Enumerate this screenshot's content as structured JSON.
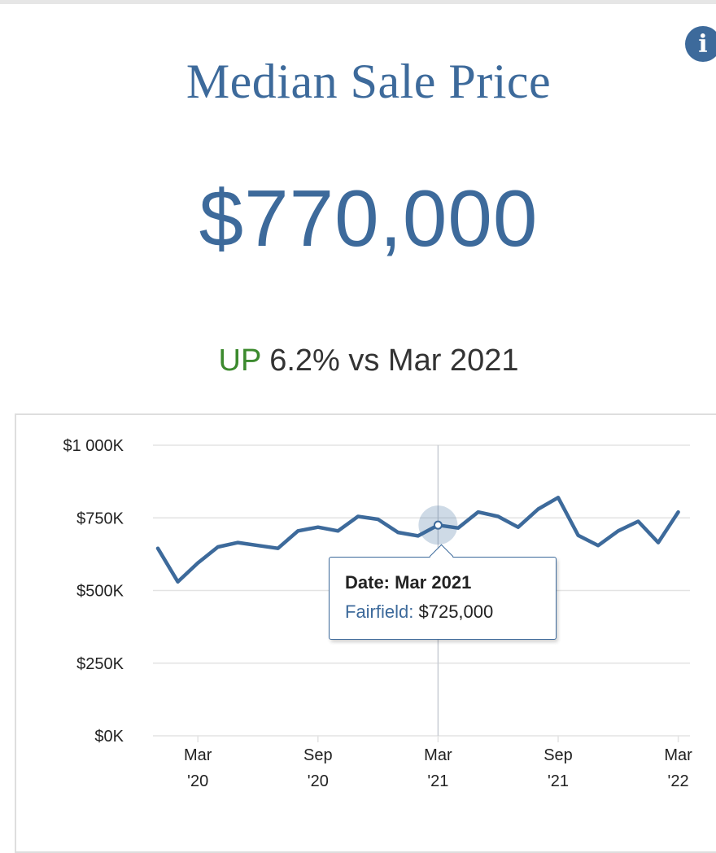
{
  "header": {
    "title": "Median Sale Price",
    "value": "$770,000",
    "change_direction": "UP",
    "change_text": "6.2% vs Mar 2021",
    "info_icon": "info-circle-icon"
  },
  "colors": {
    "accent": "#3d6a9b",
    "up": "#3c8a2e",
    "grid": "#e3e3e3",
    "crosshair": "#c8ccd4"
  },
  "chart_data": {
    "type": "line",
    "x": [
      "Jan 2020",
      "Feb 2020",
      "Mar 2020",
      "Apr 2020",
      "May 2020",
      "Jun 2020",
      "Jul 2020",
      "Aug 2020",
      "Sep 2020",
      "Oct 2020",
      "Nov 2020",
      "Dec 2020",
      "Jan 2021",
      "Feb 2021",
      "Mar 2021",
      "Apr 2021",
      "May 2021",
      "Jun 2021",
      "Jul 2021",
      "Aug 2021",
      "Sep 2021",
      "Oct 2021",
      "Nov 2021",
      "Dec 2021",
      "Jan 2022",
      "Feb 2022",
      "Mar 2022"
    ],
    "series": [
      {
        "name": "Fairfield",
        "values": [
          645000,
          530000,
          595000,
          650000,
          665000,
          655000,
          645000,
          705000,
          718000,
          705000,
          755000,
          745000,
          700000,
          688000,
          725000,
          715000,
          770000,
          755000,
          718000,
          780000,
          820000,
          690000,
          655000,
          705000,
          738000,
          665000,
          770000
        ]
      }
    ],
    "y_ticks": [
      "$1 000K",
      "$750K",
      "$500K",
      "$250K",
      "$0K"
    ],
    "y_tick_values": [
      1000000,
      750000,
      500000,
      250000,
      0
    ],
    "x_ticks": [
      {
        "month": "Mar",
        "year": "'20",
        "index": 2
      },
      {
        "month": "Sep",
        "year": "'20",
        "index": 8
      },
      {
        "month": "Mar",
        "year": "'21",
        "index": 14
      },
      {
        "month": "Sep",
        "year": "'21",
        "index": 20
      },
      {
        "month": "Mar",
        "year": "'22",
        "index": 26
      }
    ],
    "ylim": [
      0,
      1000000
    ],
    "grid": true,
    "highlight_index": 14,
    "tooltip": {
      "date_label": "Date: Mar 2021",
      "series_label": "Fairfield:",
      "value_label": "$725,000"
    }
  }
}
